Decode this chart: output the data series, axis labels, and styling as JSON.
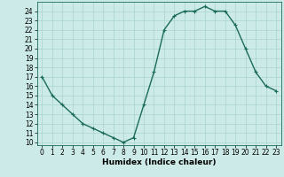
{
  "x": [
    0,
    1,
    2,
    3,
    4,
    5,
    6,
    7,
    8,
    9,
    10,
    11,
    12,
    13,
    14,
    15,
    16,
    17,
    18,
    19,
    20,
    21,
    22,
    23
  ],
  "y": [
    17,
    15,
    14,
    13,
    12,
    11.5,
    11,
    10.5,
    10,
    10.5,
    14,
    17.5,
    22,
    23.5,
    24,
    24,
    24.5,
    24,
    24,
    22.5,
    20,
    17.5,
    16,
    15.5
  ],
  "line_color": "#1a6b5a",
  "marker": "+",
  "marker_size": 3,
  "bg_color": "#cceae7",
  "grid_color": "#aad4d0",
  "xlabel": "Humidex (Indice chaleur)",
  "xlim": [
    -0.5,
    23.5
  ],
  "ylim": [
    9.7,
    25.0
  ],
  "yticks": [
    10,
    11,
    12,
    13,
    14,
    15,
    16,
    17,
    18,
    19,
    20,
    21,
    22,
    23,
    24
  ],
  "xticks": [
    0,
    1,
    2,
    3,
    4,
    5,
    6,
    7,
    8,
    9,
    10,
    11,
    12,
    13,
    14,
    15,
    16,
    17,
    18,
    19,
    20,
    21,
    22,
    23
  ],
  "xlabel_fontsize": 6.5,
  "tick_fontsize": 5.5,
  "linewidth": 1.0,
  "markeredgewidth": 0.8
}
